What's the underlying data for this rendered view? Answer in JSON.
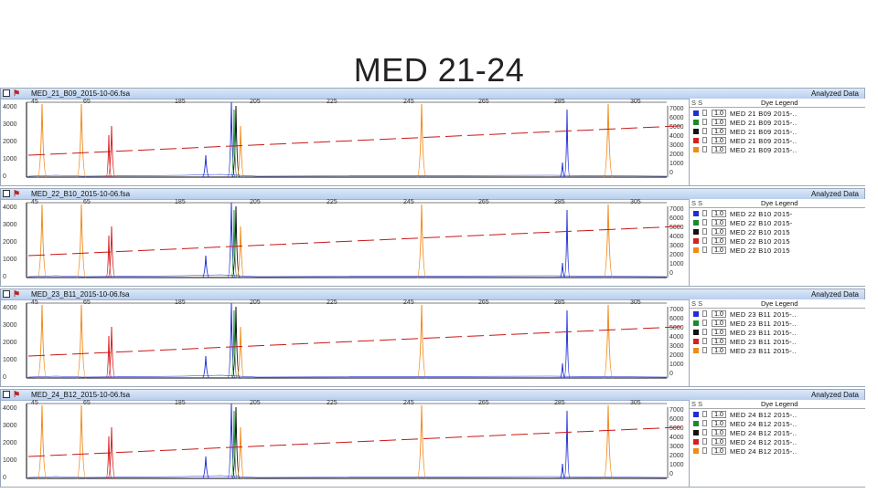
{
  "slide": {
    "title": "MED 21-24"
  },
  "panel_status": "Analyzed Data",
  "legend_header": {
    "ss": "S S",
    "dye_legend": "Dye Legend"
  },
  "scale_value": "1.0",
  "x_ticks": [
    "45",
    "65",
    "185",
    "205",
    "225",
    "245",
    "265",
    "285",
    "305"
  ],
  "y_ticks": [
    "4000",
    "3000",
    "2000",
    "1000",
    "0"
  ],
  "right_ticks": [
    "7000",
    "6000",
    "5000",
    "4000",
    "3000",
    "2000",
    "1000",
    "0"
  ],
  "dye_colors": [
    "#1f2fd6",
    "#1a8a2a",
    "#111111",
    "#d42020",
    "#f08a1a"
  ],
  "panels": [
    {
      "file": "MED_21_B09_2015-10-06.fsa",
      "legend": [
        "MED 21 B09 2015-..",
        "MED 21 B09 2015-..",
        "MED 21 B09 2015-..",
        "MED 21 B09 2015-..",
        "MED 21 B09 2015-.."
      ]
    },
    {
      "file": "MED_22_B10_2015-10-06.fsa",
      "legend": [
        "MED 22 B10 2015-",
        "MED 22 B10 2015-",
        "MED 22 B10 2015",
        "MED 22 B10 2015",
        "MED 22 B10 2015"
      ]
    },
    {
      "file": "MED_23_B11_2015-10-06.fsa",
      "legend": [
        "MED 23 B11 2015-..",
        "MED 23 B11 2015-..",
        "MED 23 B11 2015-..",
        "MED 23 B11 2015-..",
        "MED 23 B11 2015-.."
      ]
    },
    {
      "file": "MED_24_B12_2015-10-06.fsa",
      "legend": [
        "MED 24 B12 2015-..",
        "MED 24 B12 2015-..",
        "MED 24 B12 2015-..",
        "MED 24 B12 2015-..",
        "MED 24 B12 2015-.."
      ]
    }
  ]
}
